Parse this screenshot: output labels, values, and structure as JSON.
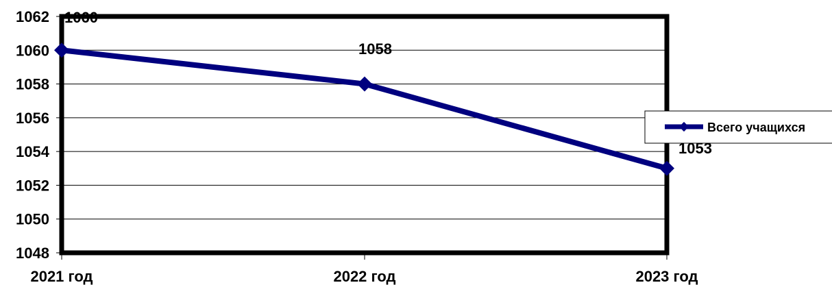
{
  "chart_data": {
    "type": "line",
    "categories": [
      "2021 год",
      "2022 год",
      "2023 год"
    ],
    "series": [
      {
        "name": "Всего учащихся",
        "values": [
          1060,
          1058,
          1053
        ],
        "color": "#00007F"
      }
    ],
    "data_labels": [
      "1060",
      "1058",
      "1053"
    ],
    "y_ticks": [
      "1048",
      "1050",
      "1052",
      "1054",
      "1056",
      "1058",
      "1060",
      "1062"
    ],
    "ylim": [
      1048,
      1062
    ],
    "grid": true,
    "legend": "right",
    "title": "",
    "xlabel": "",
    "ylabel": ""
  }
}
